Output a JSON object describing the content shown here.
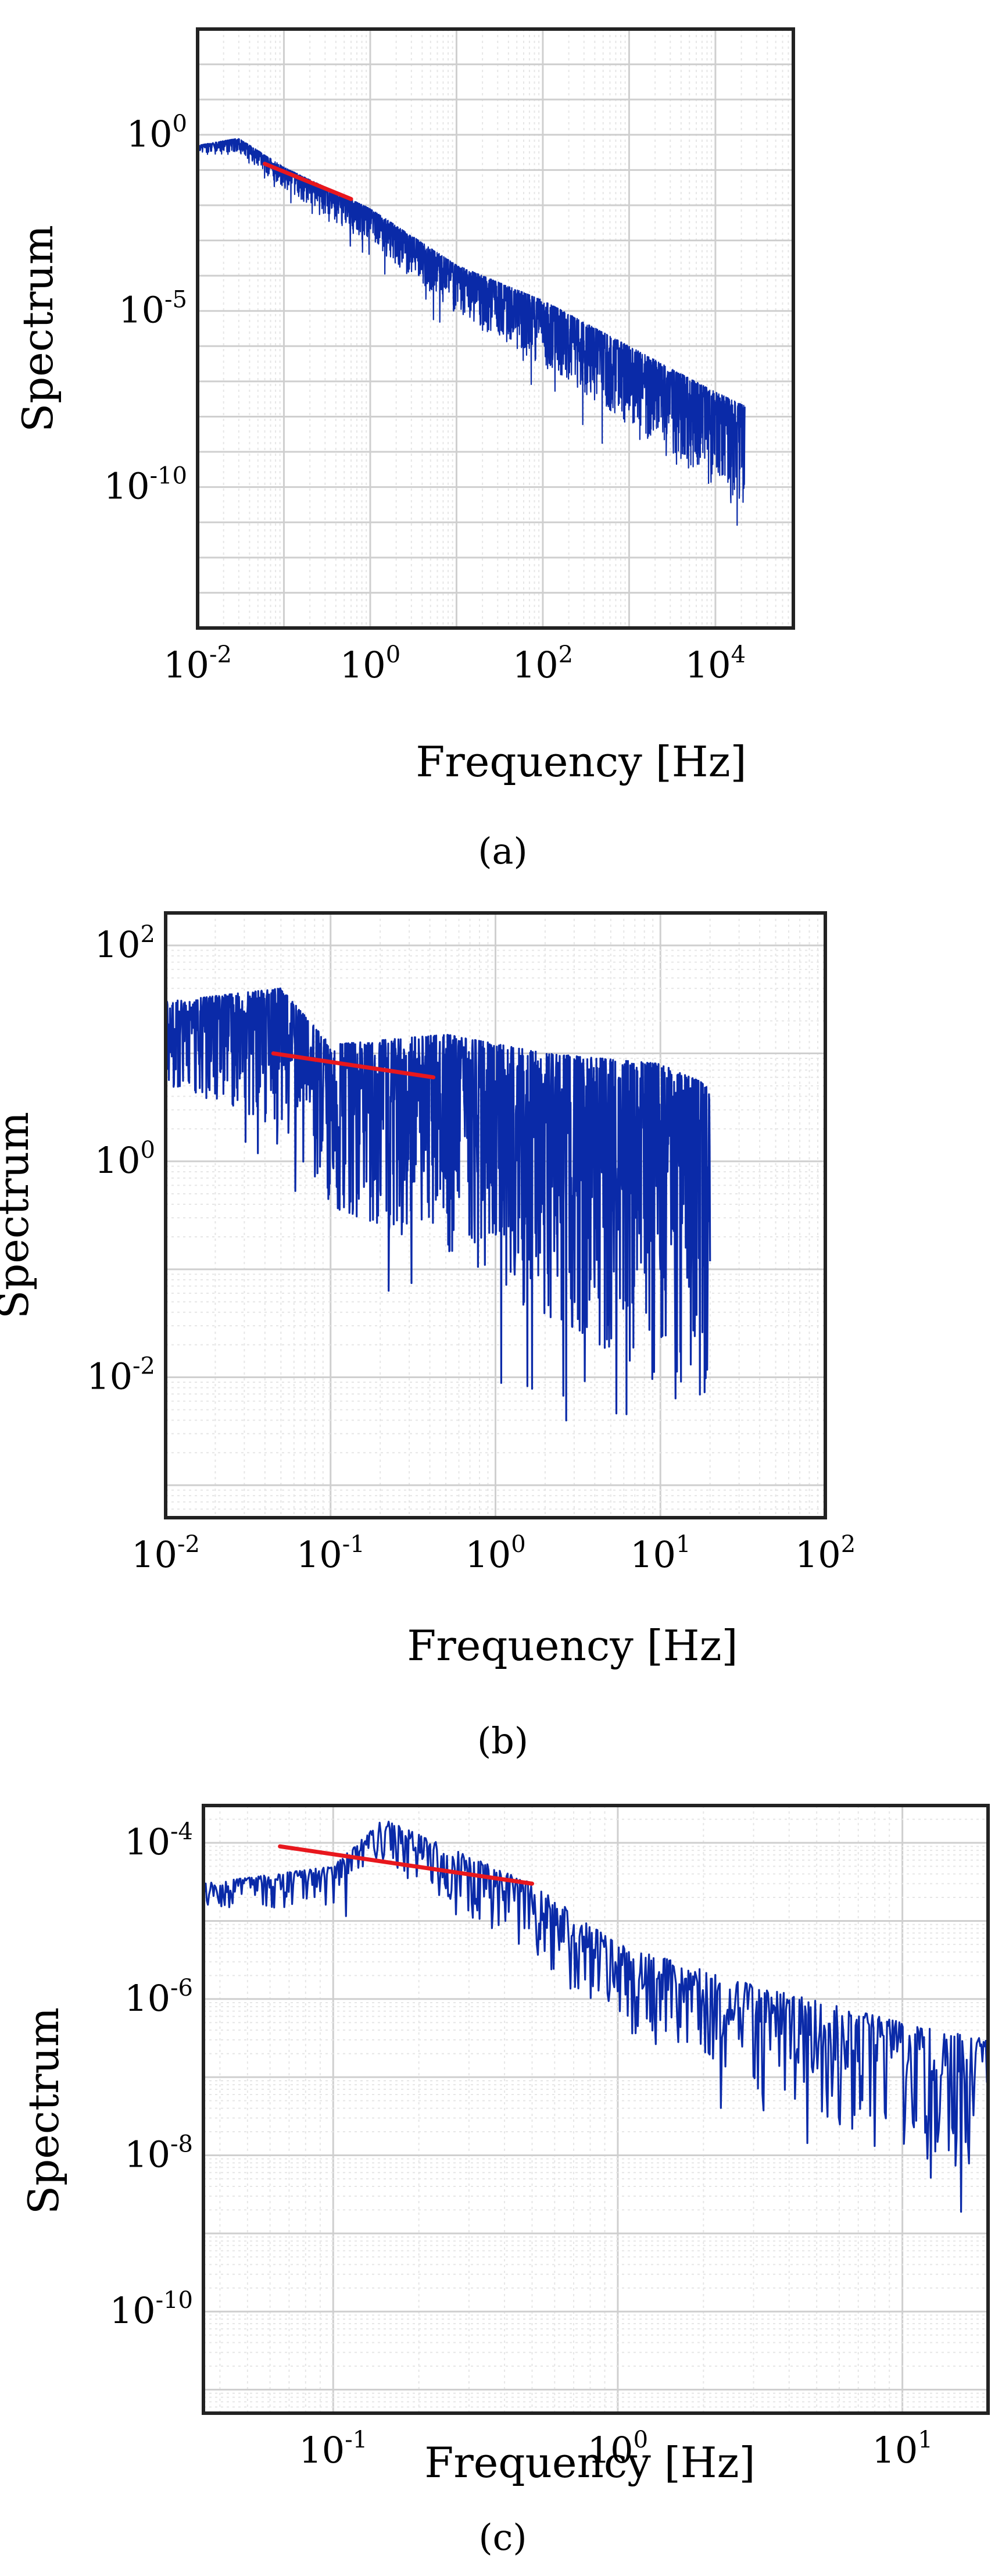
{
  "chart_data": [
    {
      "type": "line",
      "panel": "a",
      "caption": "(a)",
      "xlabel": "Frequency [Hz]",
      "ylabel": "Spectrum",
      "xscale": "log",
      "yscale": "log",
      "xlim": [
        0.01,
        80000
      ],
      "ylim": [
        1e-14,
        1000.0
      ],
      "xticks": [
        {
          "value": 0.01,
          "base": "10",
          "exp": "-2"
        },
        {
          "value": 1,
          "base": "10",
          "exp": "0"
        },
        {
          "value": 100,
          "base": "10",
          "exp": "2"
        },
        {
          "value": 10000,
          "base": "10",
          "exp": "4"
        }
      ],
      "yticks": [
        {
          "value": 1,
          "base": "10",
          "exp": "0"
        },
        {
          "value": 1e-05,
          "base": "10",
          "exp": "-5"
        },
        {
          "value": 1e-10,
          "base": "10",
          "exp": "-10"
        }
      ],
      "grid": true,
      "series": [
        {
          "name": "spectrum",
          "color": "#0a2aa8",
          "x_range": [
            0.01,
            22000
          ],
          "envelope": [
            [
              0.01,
              0.5
            ],
            [
              0.03,
              0.8
            ],
            [
              0.1,
              0.12
            ],
            [
              1,
              0.008
            ],
            [
              10,
              0.0002
            ],
            [
              100,
              2e-05
            ],
            [
              1000,
              1e-06
            ],
            [
              10000,
              5e-08
            ],
            [
              22000,
              2e-08
            ]
          ],
          "spread_decades": [
            0.2,
            2.8
          ]
        },
        {
          "name": "fit",
          "color": "#e8171d",
          "points": [
            [
              0.06,
              0.15
            ],
            [
              0.6,
              0.015
            ]
          ]
        }
      ]
    },
    {
      "type": "line",
      "panel": "b",
      "caption": "(b)",
      "xlabel": "Frequency [Hz]",
      "ylabel": "Spectrum",
      "xscale": "log",
      "yscale": "log",
      "xlim": [
        0.01,
        100
      ],
      "ylim": [
        0.0005,
        200
      ],
      "xticks": [
        {
          "value": 0.01,
          "base": "10",
          "exp": "-2"
        },
        {
          "value": 0.1,
          "base": "10",
          "exp": "-1"
        },
        {
          "value": 1,
          "base": "10",
          "exp": "0"
        },
        {
          "value": 10,
          "base": "10",
          "exp": "1"
        },
        {
          "value": 100,
          "base": "10",
          "exp": "2"
        }
      ],
      "yticks": [
        {
          "value": 100,
          "base": "10",
          "exp": "2"
        },
        {
          "value": 1,
          "base": "10",
          "exp": "0"
        },
        {
          "value": 0.01,
          "base": "10",
          "exp": "-2"
        }
      ],
      "grid": true,
      "series": [
        {
          "name": "spectrum",
          "color": "#0a2aa8",
          "x_range": [
            0.01,
            20
          ],
          "envelope": [
            [
              0.01,
              30
            ],
            [
              0.05,
              40
            ],
            [
              0.1,
              12
            ],
            [
              0.5,
              15
            ],
            [
              2,
              10
            ],
            [
              10,
              8
            ],
            [
              20,
              5
            ]
          ],
          "spread_decades": [
            0.8,
            3.2
          ]
        },
        {
          "name": "fit",
          "color": "#e8171d",
          "points": [
            [
              0.045,
              10
            ],
            [
              0.42,
              6
            ]
          ]
        }
      ]
    },
    {
      "type": "line",
      "panel": "c",
      "caption": "(c)",
      "xlabel": "Frequency [Hz]",
      "ylabel": "Spectrum",
      "xscale": "log",
      "yscale": "log",
      "xlim": [
        0.035,
        20
      ],
      "ylim": [
        5e-12,
        0.0003
      ],
      "xticks": [
        {
          "value": 0.1,
          "base": "10",
          "exp": "-1"
        },
        {
          "value": 1,
          "base": "10",
          "exp": "0"
        },
        {
          "value": 10,
          "base": "10",
          "exp": "1"
        }
      ],
      "yticks": [
        {
          "value": 0.0001,
          "base": "10",
          "exp": "-4"
        },
        {
          "value": 1e-06,
          "base": "10",
          "exp": "-6"
        },
        {
          "value": 1e-08,
          "base": "10",
          "exp": "-8"
        },
        {
          "value": 1e-10,
          "base": "10",
          "exp": "-10"
        }
      ],
      "grid": true,
      "series": [
        {
          "name": "spectrum",
          "color": "#0a2aa8",
          "x_range": [
            0.035,
            20
          ],
          "envelope": [
            [
              0.035,
              3e-05
            ],
            [
              0.1,
              5e-05
            ],
            [
              0.15,
              0.0002
            ],
            [
              0.5,
              3e-05
            ],
            [
              1,
              5e-06
            ],
            [
              3,
              1.5e-06
            ],
            [
              10,
              5e-07
            ],
            [
              20,
              3e-07
            ]
          ],
          "spread_decades": [
            0.3,
            1.8
          ]
        },
        {
          "name": "fit",
          "color": "#e8171d",
          "points": [
            [
              0.065,
              9e-05
            ],
            [
              0.5,
              3e-05
            ]
          ]
        }
      ]
    }
  ]
}
